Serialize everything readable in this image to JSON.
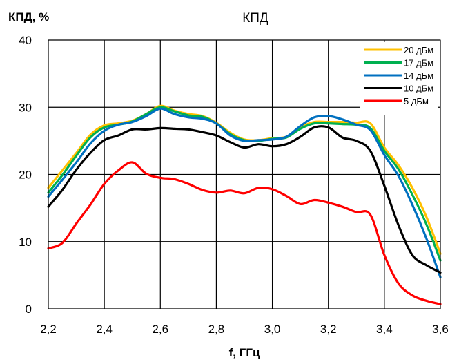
{
  "chart_data": {
    "type": "line",
    "title": "КПД",
    "xlabel": "f, ГГц",
    "ylabel": "КПД, %",
    "xlim": [
      2.2,
      3.6
    ],
    "ylim": [
      0,
      40
    ],
    "xticks": [
      2.2,
      2.4,
      2.6,
      2.8,
      3.0,
      3.2,
      3.4,
      3.6
    ],
    "yticks": [
      0,
      10,
      20,
      30,
      40
    ],
    "xtick_labels": [
      "2,2",
      "2,4",
      "2,6",
      "2,8",
      "3,0",
      "3,2",
      "3,4",
      "3,6"
    ],
    "ytick_labels": [
      "0",
      "10",
      "20",
      "30",
      "40"
    ],
    "grid": true,
    "legend_position": "top-right",
    "series": [
      {
        "name": "20 дБм",
        "color": "#FFC000",
        "x": [
          2.2,
          2.25,
          2.3,
          2.35,
          2.4,
          2.45,
          2.5,
          2.55,
          2.6,
          2.65,
          2.7,
          2.75,
          2.8,
          2.85,
          2.9,
          2.95,
          3.0,
          3.05,
          3.1,
          3.15,
          3.2,
          3.25,
          3.3,
          3.35,
          3.4,
          3.45,
          3.5,
          3.55,
          3.6
        ],
        "y": [
          18,
          20.6,
          23.2,
          25.9,
          27.3,
          27.6,
          28,
          29,
          30.2,
          29.5,
          29,
          28.7,
          27.7,
          26.2,
          25.2,
          25.1,
          25.4,
          25.6,
          27,
          27.8,
          27.8,
          27.8,
          27.7,
          27.6,
          24,
          21.4,
          18,
          13.7,
          8.2
        ]
      },
      {
        "name": "17 дБм",
        "color": "#00B050",
        "x": [
          2.2,
          2.25,
          2.3,
          2.35,
          2.4,
          2.45,
          2.5,
          2.55,
          2.6,
          2.65,
          2.7,
          2.75,
          2.8,
          2.85,
          2.9,
          2.95,
          3.0,
          3.05,
          3.1,
          3.15,
          3.2,
          3.25,
          3.3,
          3.35,
          3.4,
          3.45,
          3.5,
          3.55,
          3.6
        ],
        "y": [
          17.3,
          19.9,
          22.8,
          25.5,
          27,
          27.4,
          27.9,
          29,
          30,
          29.4,
          28.8,
          28.6,
          27.6,
          26,
          25.1,
          25,
          25.3,
          25.5,
          26.8,
          27.6,
          27.6,
          27.5,
          27.4,
          26.9,
          23.5,
          20.8,
          17,
          12.6,
          7.2
        ]
      },
      {
        "name": "14 дБм",
        "color": "#0070C0",
        "x": [
          2.2,
          2.25,
          2.3,
          2.35,
          2.4,
          2.45,
          2.5,
          2.55,
          2.6,
          2.65,
          2.7,
          2.75,
          2.8,
          2.85,
          2.9,
          2.95,
          3.0,
          3.05,
          3.1,
          3.15,
          3.2,
          3.25,
          3.3,
          3.35,
          3.4,
          3.45,
          3.5,
          3.55,
          3.6
        ],
        "y": [
          16.7,
          19.2,
          21.8,
          24.6,
          26.5,
          27.4,
          27.8,
          28.7,
          29.8,
          29,
          28.5,
          28.3,
          27.6,
          25.8,
          25,
          25.1,
          25.2,
          25.6,
          27.2,
          28.5,
          28.7,
          28.2,
          27.4,
          26.6,
          22.9,
          19.8,
          15.5,
          10.5,
          4.7
        ]
      },
      {
        "name": "10 дБм",
        "color": "#000000",
        "x": [
          2.2,
          2.25,
          2.3,
          2.35,
          2.4,
          2.45,
          2.5,
          2.55,
          2.6,
          2.65,
          2.7,
          2.75,
          2.8,
          2.85,
          2.9,
          2.95,
          3.0,
          3.05,
          3.1,
          3.15,
          3.2,
          3.25,
          3.3,
          3.35,
          3.4,
          3.45,
          3.5,
          3.55,
          3.6
        ],
        "y": [
          15.2,
          17.7,
          20.7,
          23.2,
          25.1,
          25.8,
          26.7,
          26.7,
          26.9,
          26.8,
          26.7,
          26.3,
          25.8,
          24.8,
          24,
          24.5,
          24.2,
          24.5,
          25.6,
          27,
          27,
          25.5,
          25,
          23.5,
          18.3,
          12.5,
          8,
          6.5,
          5.4
        ]
      },
      {
        "name": "5 дБм",
        "color": "#FF0000",
        "x": [
          2.2,
          2.25,
          2.3,
          2.35,
          2.4,
          2.45,
          2.5,
          2.55,
          2.6,
          2.65,
          2.7,
          2.75,
          2.8,
          2.85,
          2.9,
          2.95,
          3.0,
          3.05,
          3.1,
          3.15,
          3.2,
          3.25,
          3.3,
          3.35,
          3.4,
          3.45,
          3.5,
          3.55,
          3.6
        ],
        "y": [
          9,
          9.8,
          12.7,
          15.5,
          18.6,
          20.6,
          21.8,
          20.1,
          19.5,
          19.3,
          18.6,
          17.7,
          17.3,
          17.6,
          17.2,
          18,
          17.8,
          16.8,
          15.6,
          16.2,
          15.8,
          15.2,
          14.4,
          14,
          8,
          3.8,
          2,
          1.2,
          0.7
        ]
      }
    ]
  }
}
